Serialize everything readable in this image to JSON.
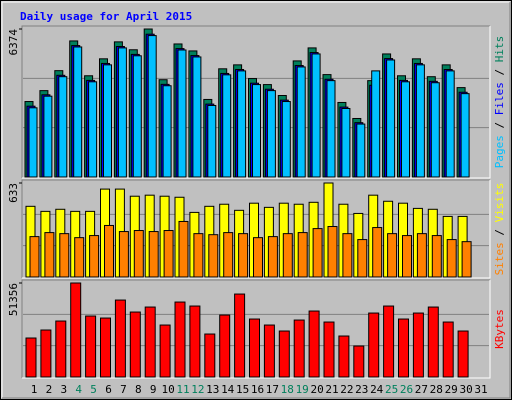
{
  "title": "Daily usage for April 2015",
  "legend_separator": " / ",
  "chart_data": [
    {
      "type": "bar",
      "ylim": [
        0,
        6374
      ],
      "yticks": [
        6374
      ],
      "series": [
        {
          "name": "Hits",
          "color": "#00805c",
          "values": [
            3250,
            3720,
            4580,
            5860,
            4360,
            5090,
            5820,
            5480,
            6374,
            4190,
            5730,
            5430,
            3340,
            4660,
            4830,
            4240,
            3980,
            3510,
            5000,
            5560,
            4410,
            3210,
            2520,
            4150,
            5300,
            4360,
            5090,
            4320,
            4830,
            3850,
            null
          ]
        },
        {
          "name": "Files",
          "color": "#0000ff",
          "values": [
            3050,
            3540,
            4380,
            5660,
            4160,
            4890,
            5620,
            5280,
            6150,
            3990,
            5530,
            5230,
            3140,
            4460,
            4630,
            4040,
            3780,
            3310,
            4800,
            5360,
            4210,
            3010,
            2340,
            3950,
            5100,
            4160,
            4890,
            4120,
            4630,
            3650,
            null
          ]
        },
        {
          "name": "Pages",
          "color": "#00c0ff",
          "values": [
            2980,
            3480,
            4320,
            5600,
            4100,
            4830,
            5560,
            5220,
            6090,
            3930,
            5470,
            5170,
            3080,
            4400,
            4570,
            3980,
            3720,
            3250,
            4740,
            5300,
            4150,
            2950,
            2280,
            4570,
            5040,
            4100,
            4830,
            4060,
            4570,
            3590,
            null
          ]
        }
      ]
    },
    {
      "type": "bar",
      "ylim": [
        0,
        633
      ],
      "yticks": [
        633
      ],
      "series": [
        {
          "name": "Visits",
          "color": "#ffff00",
          "values": [
            476,
            442,
            456,
            442,
            442,
            592,
            592,
            544,
            551,
            544,
            537,
            435,
            476,
            490,
            449,
            497,
            469,
            497,
            490,
            503,
            633,
            490,
            428,
            551,
            510,
            497,
            462,
            456,
            408,
            408,
            null
          ]
        },
        {
          "name": "Sites",
          "color": "#ff8000",
          "values": [
            272,
            299,
            292,
            265,
            279,
            347,
            306,
            313,
            306,
            313,
            374,
            292,
            285,
            299,
            292,
            265,
            272,
            292,
            299,
            326,
            340,
            292,
            252,
            333,
            292,
            279,
            292,
            279,
            252,
            238,
            null
          ]
        }
      ]
    },
    {
      "type": "bar",
      "ylim": [
        0,
        51356
      ],
      "yticks": [
        51356
      ],
      "categories": [
        "1",
        "2",
        "3",
        "4",
        "5",
        "6",
        "7",
        "8",
        "9",
        "10",
        "11",
        "12",
        "13",
        "14",
        "15",
        "16",
        "17",
        "18",
        "19",
        "20",
        "21",
        "22",
        "23",
        "24",
        "25",
        "26",
        "27",
        "28",
        "29",
        "30",
        "31"
      ],
      "category_colors": [
        "#000000",
        "#000000",
        "#000000",
        "#00805c",
        "#00805c",
        "#000000",
        "#000000",
        "#000000",
        "#000000",
        "#000000",
        "#00805c",
        "#00805c",
        "#000000",
        "#000000",
        "#000000",
        "#000000",
        "#000000",
        "#00805c",
        "#00805c",
        "#000000",
        "#000000",
        "#000000",
        "#000000",
        "#000000",
        "#00805c",
        "#00805c",
        "#000000",
        "#000000",
        "#000000",
        "#000000",
        "#000000"
      ],
      "series": [
        {
          "name": "KBytes",
          "color": "#ff0000",
          "values": [
            21300,
            25670,
            30580,
            51356,
            33310,
            32210,
            42040,
            35490,
            38220,
            28390,
            40950,
            38770,
            23480,
            33850,
            45320,
            31670,
            28390,
            25120,
            31120,
            36040,
            30030,
            22390,
            16930,
            34940,
            38770,
            31670,
            34940,
            38220,
            30030,
            25120,
            null
          ]
        }
      ]
    }
  ]
}
